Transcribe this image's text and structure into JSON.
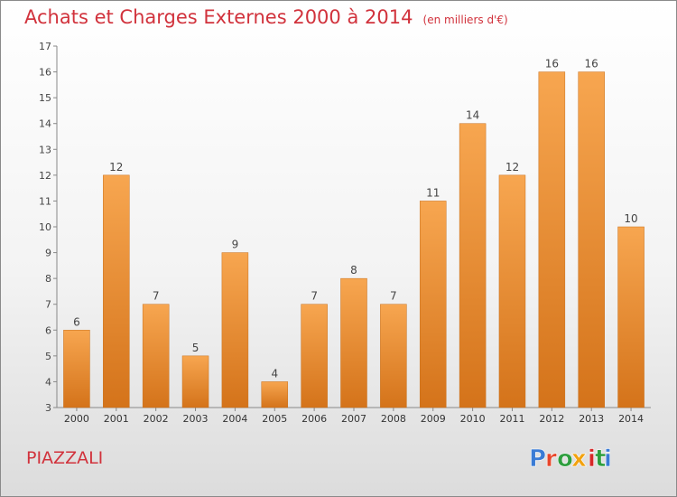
{
  "title": "Achats et Charges Externes 2000 à 2014",
  "unit": "(en milliers d'€)",
  "commune": "PIAZZALI",
  "logo": {
    "text": "Proxiti",
    "letters": [
      "P",
      "r",
      "o",
      "x",
      "i",
      "t",
      "i"
    ],
    "colors": [
      "#3a7bd5",
      "#e8462b",
      "#2e9e3e",
      "#f2a20f",
      "#d62828",
      "#2e9e3e",
      "#3a7bd5"
    ]
  },
  "chart_data": {
    "type": "bar",
    "categories": [
      "2000",
      "2001",
      "2002",
      "2003",
      "2004",
      "2005",
      "2006",
      "2007",
      "2008",
      "2009",
      "2010",
      "2011",
      "2012",
      "2013",
      "2014"
    ],
    "values": [
      6,
      12,
      7,
      5,
      9,
      4,
      7,
      8,
      7,
      11,
      14,
      12,
      16,
      16,
      10
    ],
    "ylim": [
      3,
      17
    ],
    "yticks": [
      3,
      4,
      5,
      6,
      7,
      8,
      9,
      10,
      11,
      12,
      13,
      14,
      15,
      16,
      17
    ],
    "grid": false,
    "bar_color_top": "#f7a650",
    "bar_color_bottom": "#d4731a"
  }
}
